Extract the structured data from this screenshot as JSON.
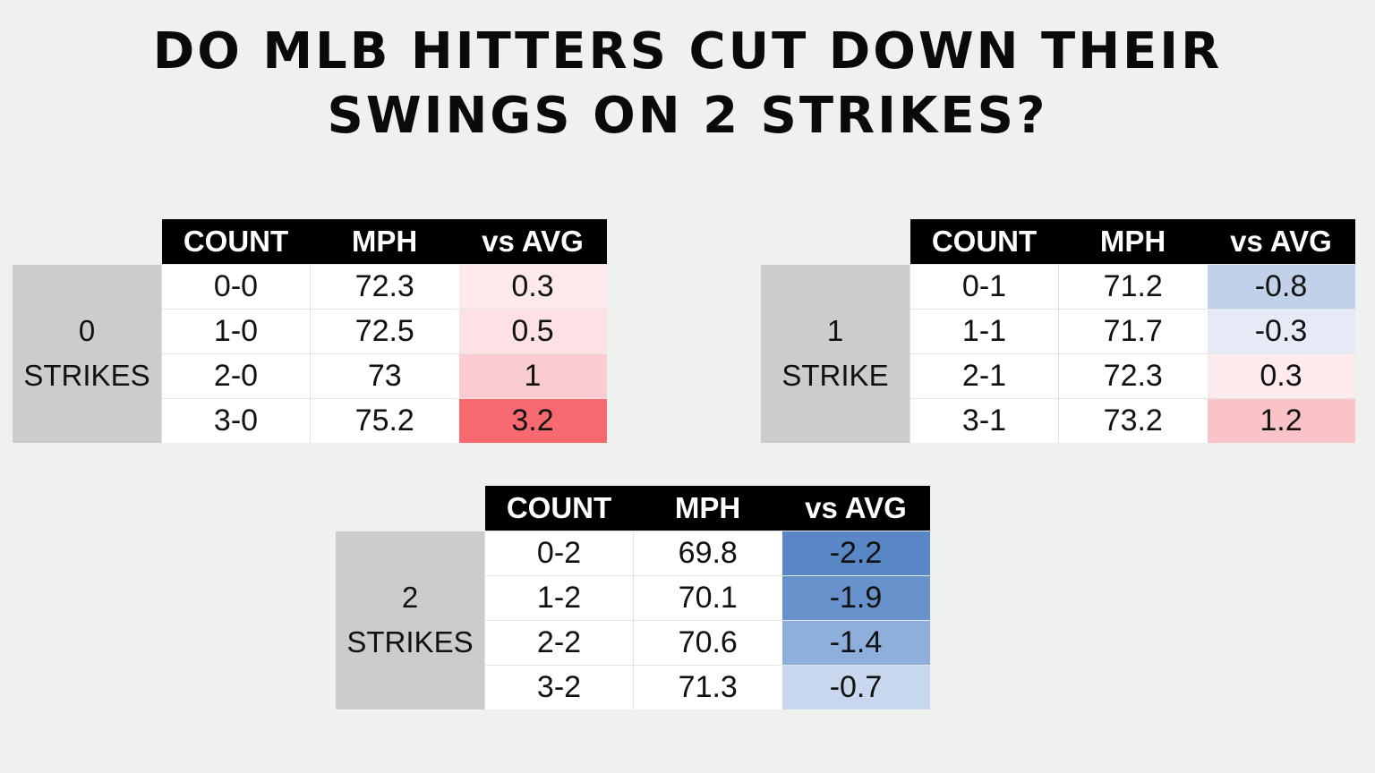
{
  "title": {
    "line1": "DO MLB HITTERS CUT DOWN THEIR",
    "line2": "SWINGS ON 2 STRIKES?"
  },
  "headers": {
    "count": "COUNT",
    "mph": "MPH",
    "vs_avg": "vs AVG"
  },
  "tables": [
    {
      "label_num": "0",
      "label_text": "STRIKES",
      "rows": [
        {
          "count": "0-0",
          "mph": "72.3",
          "vs": "0.3",
          "color": "#fde9eb"
        },
        {
          "count": "1-0",
          "mph": "72.5",
          "vs": "0.5",
          "color": "#fde1e4"
        },
        {
          "count": "2-0",
          "mph": "73",
          "vs": "1",
          "color": "#facbcf"
        },
        {
          "count": "3-0",
          "mph": "75.2",
          "vs": "3.2",
          "color": "#f86a6f"
        }
      ]
    },
    {
      "label_num": "1",
      "label_text": "STRIKE",
      "rows": [
        {
          "count": "0-1",
          "mph": "71.2",
          "vs": "-0.8",
          "color": "#c2d1ea"
        },
        {
          "count": "1-1",
          "mph": "71.7",
          "vs": "-0.3",
          "color": "#e5eaf6"
        },
        {
          "count": "2-1",
          "mph": "72.3",
          "vs": "0.3",
          "color": "#fdeaec"
        },
        {
          "count": "3-1",
          "mph": "73.2",
          "vs": "1.2",
          "color": "#f9c3c8"
        }
      ]
    },
    {
      "label_num": "2",
      "label_text": "STRIKES",
      "rows": [
        {
          "count": "0-2",
          "mph": "69.8",
          "vs": "-2.2",
          "color": "#5987c6"
        },
        {
          "count": "1-2",
          "mph": "70.1",
          "vs": "-1.9",
          "color": "#6892cc"
        },
        {
          "count": "2-2",
          "mph": "70.6",
          "vs": "-1.4",
          "color": "#8eaedb"
        },
        {
          "count": "3-2",
          "mph": "71.3",
          "vs": "-0.7",
          "color": "#c9d7ee"
        }
      ]
    }
  ],
  "chart_data": {
    "type": "table",
    "title": "DO MLB HITTERS CUT DOWN THEIR SWINGS ON 2 STRIKES?",
    "columns": [
      "COUNT",
      "MPH",
      "vs AVG"
    ],
    "groups": [
      {
        "name": "0 STRIKES",
        "counts": [
          "0-0",
          "1-0",
          "2-0",
          "3-0"
        ],
        "mph": [
          72.3,
          72.5,
          73,
          75.2
        ],
        "vs_avg": [
          0.3,
          0.5,
          1,
          3.2
        ]
      },
      {
        "name": "1 STRIKE",
        "counts": [
          "0-1",
          "1-1",
          "2-1",
          "3-1"
        ],
        "mph": [
          71.2,
          71.7,
          72.3,
          73.2
        ],
        "vs_avg": [
          -0.8,
          -0.3,
          0.3,
          1.2
        ]
      },
      {
        "name": "2 STRIKES",
        "counts": [
          "0-2",
          "1-2",
          "2-2",
          "3-2"
        ],
        "mph": [
          69.8,
          70.1,
          70.6,
          71.3
        ],
        "vs_avg": [
          -2.2,
          -1.9,
          -1.4,
          -0.7
        ]
      }
    ]
  }
}
